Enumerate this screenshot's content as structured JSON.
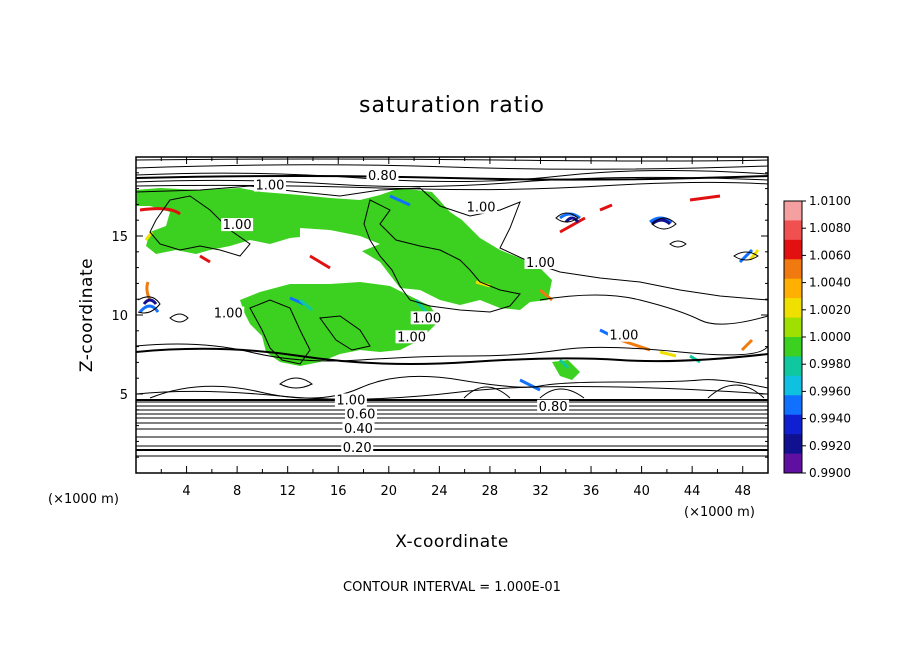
{
  "chart_data": {
    "type": "heatmap",
    "title": "saturation ratio",
    "xlabel": "X-coordinate",
    "ylabel": "Z-coordinate",
    "x_unit": "(×1000 m)",
    "y_unit": "(×1000 m)",
    "xlim": [
      0,
      50
    ],
    "ylim": [
      0,
      20
    ],
    "x_ticks": [
      4,
      8,
      12,
      16,
      20,
      24,
      28,
      32,
      36,
      40,
      44,
      48
    ],
    "y_ticks": [
      5,
      10,
      15
    ],
    "grid": false,
    "colorbar": {
      "placement": "right",
      "labels": [
        "1.0100",
        "1.0080",
        "1.0060",
        "1.0040",
        "1.0020",
        "1.0000",
        "0.9980",
        "0.9960",
        "0.9940",
        "0.9920",
        "0.9900"
      ],
      "colors": [
        "#f4a0a0",
        "#f05050",
        "#e21010",
        "#f07a10",
        "#ffb000",
        "#f0e000",
        "#a0e000",
        "#3cd020",
        "#10c8a0",
        "#10c0e0",
        "#1070ff",
        "#1020d0",
        "#101090",
        "#6010a0"
      ]
    },
    "contour_labels": [
      {
        "text": "0.80",
        "x": 19.5,
        "z": 18.6
      },
      {
        "text": "1.00",
        "x": 10.6,
        "z": 18.0
      },
      {
        "text": "1.00",
        "x": 8.0,
        "z": 15.5
      },
      {
        "text": "1.00",
        "x": 27.3,
        "z": 16.6
      },
      {
        "text": "1.00",
        "x": 32.0,
        "z": 13.1
      },
      {
        "text": "1.00",
        "x": 7.3,
        "z": 9.9
      },
      {
        "text": "1.00",
        "x": 23.0,
        "z": 9.6
      },
      {
        "text": "1.00",
        "x": 21.8,
        "z": 8.4
      },
      {
        "text": "1.00",
        "x": 38.6,
        "z": 8.5
      },
      {
        "text": "1.00",
        "x": 17.0,
        "z": 4.4
      },
      {
        "text": "0.80",
        "x": 33.0,
        "z": 4.0
      },
      {
        "text": "0.60",
        "x": 17.8,
        "z": 3.5
      },
      {
        "text": "0.40",
        "x": 17.6,
        "z": 2.6
      },
      {
        "text": "0.20",
        "x": 17.5,
        "z": 1.4
      }
    ],
    "contour_interval": "CONTOUR INTERVAL = 1.000E-01"
  }
}
